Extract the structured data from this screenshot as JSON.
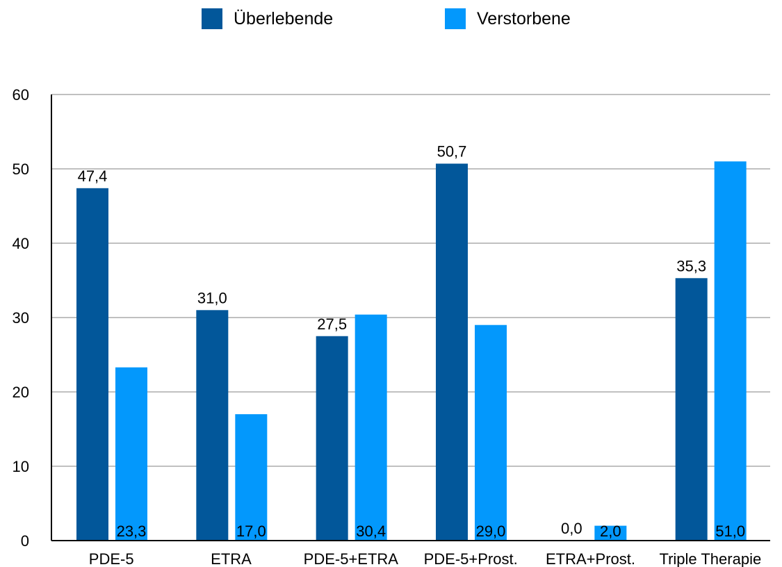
{
  "chart_data": {
    "type": "bar",
    "categories": [
      "PDE-5",
      "ETRA",
      "PDE-5+ETRA",
      "PDE-5+Prost.",
      "ETRA+Prost.",
      "Triple Therapie"
    ],
    "series": [
      {
        "name": "Überlebende",
        "values": [
          47.4,
          31.0,
          27.5,
          50.7,
          0.0,
          35.3
        ],
        "labels": [
          "47,4",
          "31,0",
          "27,5",
          "50,7",
          "0,0",
          "35,3"
        ],
        "color": "#02579a"
      },
      {
        "name": "Verstorbene",
        "values": [
          23.3,
          17.0,
          30.4,
          29.0,
          2.0,
          51.0
        ],
        "labels": [
          "23,3",
          "17,0",
          "30,4",
          "29,0",
          "2,0",
          "51,0"
        ],
        "color": "#0398fc"
      }
    ],
    "ylim": [
      0,
      60
    ],
    "yticks": [
      "0",
      "10",
      "20",
      "30",
      "40",
      "50",
      "60"
    ],
    "grid": true,
    "legend": "top-center"
  }
}
